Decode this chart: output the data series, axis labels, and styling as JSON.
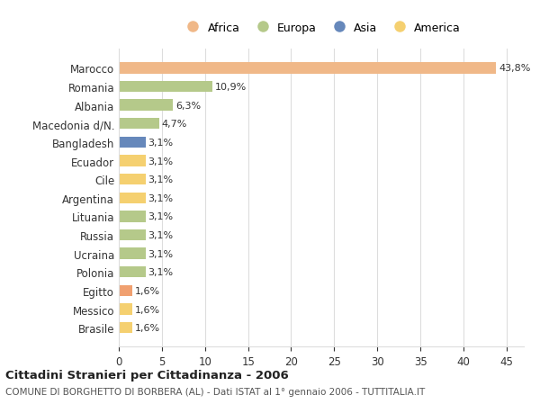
{
  "countries": [
    "Marocco",
    "Romania",
    "Albania",
    "Macedonia d/N.",
    "Bangladesh",
    "Ecuador",
    "Cile",
    "Argentina",
    "Lituania",
    "Russia",
    "Ucraina",
    "Polonia",
    "Egitto",
    "Messico",
    "Brasile"
  ],
  "values": [
    43.8,
    10.9,
    6.3,
    4.7,
    3.1,
    3.1,
    3.1,
    3.1,
    3.1,
    3.1,
    3.1,
    3.1,
    1.6,
    1.6,
    1.6
  ],
  "labels": [
    "43,8%",
    "10,9%",
    "6,3%",
    "4,7%",
    "3,1%",
    "3,1%",
    "3,1%",
    "3,1%",
    "3,1%",
    "3,1%",
    "3,1%",
    "3,1%",
    "1,6%",
    "1,6%",
    "1,6%"
  ],
  "colors": [
    "#f0b888",
    "#b5c98a",
    "#b5c98a",
    "#b5c98a",
    "#6688bb",
    "#f5d070",
    "#f5d070",
    "#f5d070",
    "#b5c98a",
    "#b5c98a",
    "#b5c98a",
    "#b5c98a",
    "#f0a070",
    "#f5d070",
    "#f5d070"
  ],
  "legend_labels": [
    "Africa",
    "Europa",
    "Asia",
    "America"
  ],
  "legend_colors": [
    "#f0b888",
    "#b5c98a",
    "#6688bb",
    "#f5d070"
  ],
  "title": "Cittadini Stranieri per Cittadinanza - 2006",
  "subtitle": "COMUNE DI BORGHETTO DI BORBERA (AL) - Dati ISTAT al 1° gennaio 2006 - TUTTITALIA.IT",
  "xlim": [
    0,
    47
  ],
  "xticks": [
    0,
    5,
    10,
    15,
    20,
    25,
    30,
    35,
    40,
    45
  ],
  "bg_color": "#ffffff",
  "grid_color": "#dddddd"
}
